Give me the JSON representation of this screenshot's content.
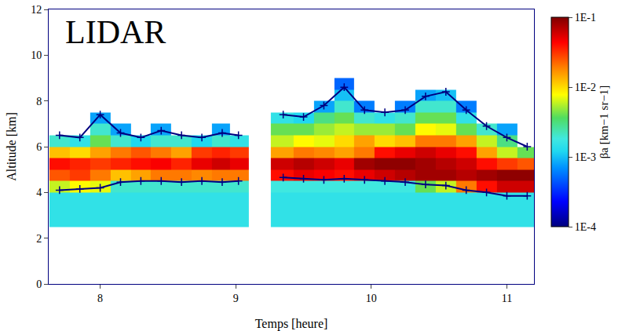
{
  "chart_data": {
    "type": "heatmap",
    "title": "LIDAR",
    "x_label": "Temps [heure]",
    "y_label": "Altitude [km]",
    "x": [
      7.7,
      7.85,
      8.0,
      8.15,
      8.3,
      8.45,
      8.6,
      8.75,
      8.9,
      9.02,
      9.17,
      9.35,
      9.5,
      9.65,
      9.8,
      9.95,
      10.1,
      10.25,
      10.4,
      10.55,
      10.7,
      10.85,
      11.0,
      11.15
    ],
    "y": [
      2.75,
      3.25,
      3.75,
      4.25,
      4.75,
      5.25,
      5.75,
      6.25,
      6.75,
      7.25,
      7.75,
      8.25,
      8.75
    ],
    "beta": [
      [
        0.0015,
        0.0015,
        0.0015,
        0.0015,
        0.0015,
        0.0015,
        0.0015,
        0.0015,
        0.0015,
        0.0015,
        null,
        0.0015,
        0.0015,
        0.0015,
        0.0015,
        0.0015,
        0.0015,
        0.0015,
        0.0015,
        0.0015,
        0.0015,
        0.0015,
        0.0015,
        0.0015
      ],
      [
        0.0015,
        0.0015,
        0.0015,
        0.0015,
        0.0015,
        0.0015,
        0.0015,
        0.0015,
        0.0015,
        0.0015,
        null,
        0.0015,
        0.0015,
        0.0015,
        0.0015,
        0.0015,
        0.0015,
        0.0015,
        0.0015,
        0.0015,
        0.0015,
        0.0015,
        0.0015,
        0.0015
      ],
      [
        0.0015,
        0.0015,
        0.0015,
        0.0015,
        0.0015,
        0.0015,
        0.0015,
        0.0015,
        0.0015,
        0.0015,
        null,
        0.0015,
        0.0015,
        0.0015,
        0.0015,
        0.0015,
        0.0015,
        0.0015,
        0.0015,
        0.0015,
        0.0015,
        0.0015,
        0.0015,
        0.0015
      ],
      [
        0.006,
        0.008,
        0.007,
        0.002,
        0.002,
        0.002,
        0.002,
        0.002,
        0.002,
        0.002,
        null,
        0.0018,
        0.0018,
        0.0018,
        0.0018,
        0.0018,
        0.0018,
        0.0018,
        0.004,
        0.006,
        0.02,
        0.04,
        0.06,
        0.06
      ],
      [
        0.025,
        0.03,
        0.02,
        0.012,
        0.015,
        0.02,
        0.02,
        0.018,
        0.02,
        0.02,
        null,
        0.04,
        0.05,
        0.045,
        0.04,
        0.05,
        0.06,
        0.07,
        0.08,
        0.08,
        0.07,
        0.08,
        0.09,
        0.09
      ],
      [
        0.04,
        0.035,
        0.03,
        0.035,
        0.04,
        0.045,
        0.035,
        0.05,
        0.06,
        0.05,
        null,
        0.06,
        0.07,
        0.06,
        0.05,
        0.08,
        0.09,
        0.09,
        0.08,
        0.07,
        0.06,
        0.04,
        0.03,
        0.025
      ],
      [
        0.012,
        0.01,
        0.015,
        0.02,
        0.025,
        0.02,
        0.015,
        0.03,
        0.035,
        0.03,
        null,
        0.015,
        0.02,
        0.018,
        0.015,
        0.02,
        0.04,
        0.05,
        0.06,
        0.05,
        0.04,
        0.015,
        0.006,
        0.004
      ],
      [
        0.002,
        0.0015,
        0.004,
        0.002,
        0.0012,
        0.002,
        0.002,
        0.0012,
        0.002,
        0.0015,
        null,
        0.006,
        0.008,
        0.007,
        0.01,
        0.015,
        0.01,
        0.012,
        0.02,
        0.02,
        0.015,
        0.006,
        0.003,
        null
      ],
      [
        null,
        null,
        0.002,
        0.0008,
        null,
        0.0008,
        null,
        null,
        0.0008,
        null,
        null,
        0.004,
        0.004,
        0.005,
        0.006,
        0.005,
        0.005,
        0.004,
        0.008,
        0.007,
        0.004,
        0.002,
        0.0008,
        null
      ],
      [
        null,
        null,
        0.0008,
        null,
        null,
        null,
        null,
        null,
        null,
        null,
        null,
        0.0015,
        0.0012,
        0.003,
        0.004,
        0.002,
        0.0015,
        0.002,
        0.004,
        0.004,
        0.0015,
        null,
        null,
        null
      ],
      [
        null,
        null,
        null,
        null,
        null,
        null,
        null,
        null,
        null,
        null,
        null,
        null,
        null,
        0.0008,
        0.002,
        0.0006,
        null,
        0.0006,
        0.002,
        0.002,
        0.0006,
        null,
        null,
        null
      ],
      [
        null,
        null,
        null,
        null,
        null,
        null,
        null,
        null,
        null,
        null,
        null,
        null,
        null,
        null,
        0.001,
        null,
        null,
        null,
        0.0008,
        0.001,
        null,
        null,
        null,
        null
      ],
      [
        null,
        null,
        null,
        null,
        null,
        null,
        null,
        null,
        null,
        null,
        null,
        null,
        null,
        null,
        0.0005,
        null,
        null,
        null,
        null,
        null,
        null,
        null,
        null,
        null
      ]
    ],
    "cloud_top": [
      6.5,
      6.4,
      7.4,
      6.6,
      6.4,
      6.7,
      6.5,
      6.4,
      6.6,
      6.5,
      null,
      7.4,
      7.3,
      7.8,
      8.6,
      7.6,
      7.5,
      7.6,
      8.2,
      8.4,
      7.6,
      6.9,
      6.4,
      6.0
    ],
    "cloud_base": [
      4.1,
      4.15,
      4.2,
      4.45,
      4.5,
      4.5,
      4.45,
      4.5,
      4.45,
      4.5,
      null,
      4.65,
      4.6,
      4.55,
      4.6,
      4.55,
      4.5,
      4.45,
      4.35,
      4.3,
      4.1,
      4.0,
      3.85,
      3.85
    ],
    "marker": "cross",
    "color": "#000080",
    "xlim": [
      7.62,
      11.2
    ],
    "xticks": [
      8,
      9,
      10,
      11
    ],
    "ylim": [
      0,
      12
    ],
    "yticks": [
      0,
      2,
      4,
      6,
      8,
      10,
      12
    ],
    "colorbar": {
      "title": "βa [km−1 sr−1]",
      "log": true,
      "range": [
        0.0001,
        0.1
      ],
      "ticks": [
        {
          "value": 0.1,
          "label": "1E-1"
        },
        {
          "value": 0.01,
          "label": "1E-2"
        },
        {
          "value": 0.001,
          "label": "1E-3"
        },
        {
          "value": 0.0001,
          "label": "1E-4"
        }
      ]
    }
  }
}
